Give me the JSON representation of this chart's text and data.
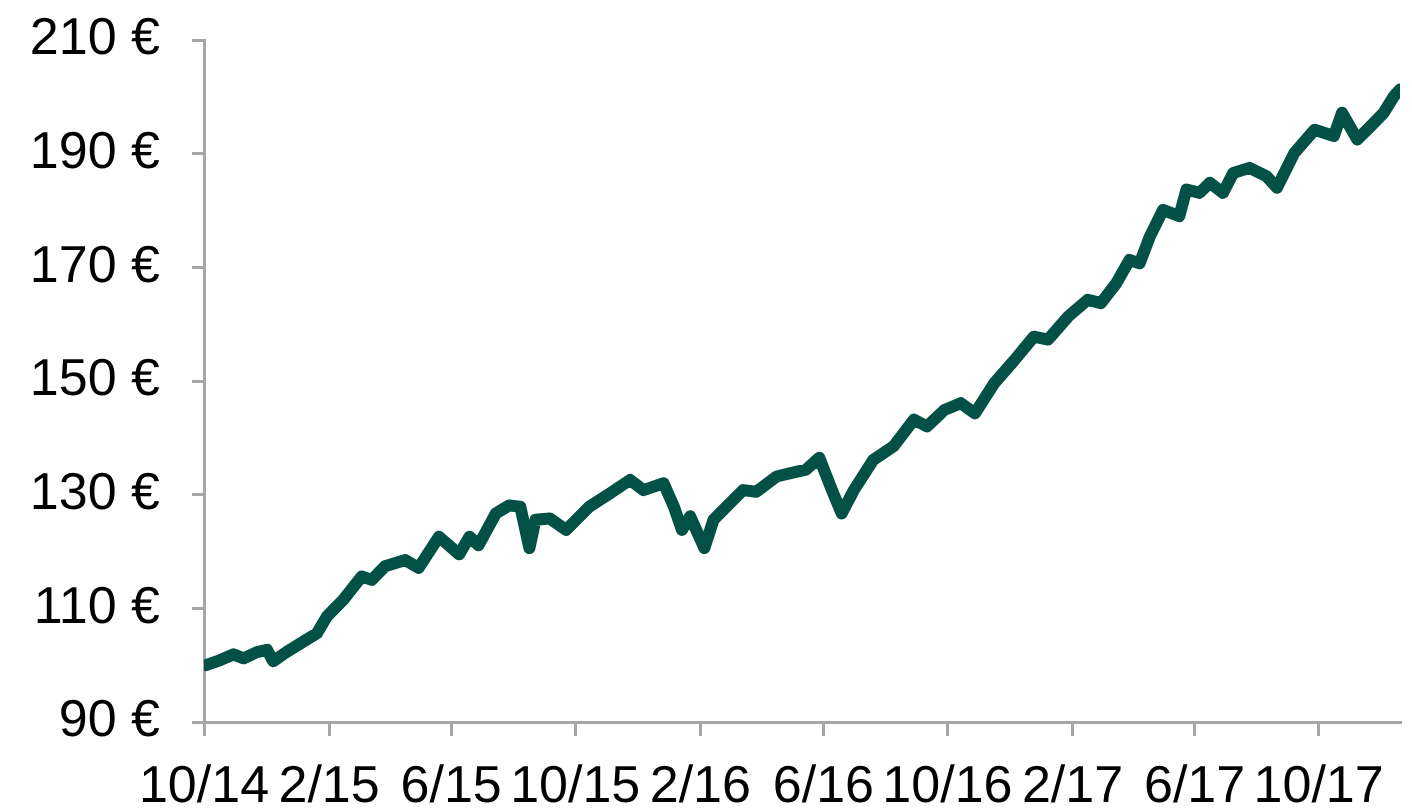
{
  "chart_data": {
    "type": "line",
    "marker": "none",
    "line_style": "solid",
    "x": [
      "2014-10-03",
      "2014-10-17",
      "2014-10-30",
      "2014-11-09",
      "2014-11-22",
      "2014-12-02",
      "2014-12-08",
      "2014-12-21",
      "2015-01-07",
      "2015-01-20",
      "2015-01-30",
      "2015-02-15",
      "2015-03-05",
      "2015-03-15",
      "2015-03-28",
      "2015-04-17",
      "2015-04-30",
      "2015-05-20",
      "2015-06-09",
      "2015-06-19",
      "2015-06-28",
      "2015-07-15",
      "2015-07-28",
      "2015-08-08",
      "2015-08-17",
      "2015-08-23",
      "2015-09-06",
      "2015-09-22",
      "2015-10-15",
      "2015-11-04",
      "2015-11-24",
      "2015-12-07",
      "2015-12-27",
      "2016-01-06",
      "2016-01-14",
      "2016-01-22",
      "2016-02-05",
      "2016-02-14",
      "2016-03-14",
      "2016-03-27",
      "2016-04-16",
      "2016-05-05",
      "2016-05-15",
      "2016-05-28",
      "2016-06-09",
      "2016-06-19",
      "2016-07-01",
      "2016-07-20",
      "2016-08-09",
      "2016-08-29",
      "2016-09-11",
      "2016-09-28",
      "2016-10-14",
      "2016-10-28",
      "2016-11-16",
      "2016-12-06",
      "2016-12-25",
      "2017-01-08",
      "2017-01-28",
      "2017-02-16",
      "2017-03-01",
      "2017-03-16",
      "2017-03-29",
      "2017-04-08",
      "2017-04-18",
      "2017-05-01",
      "2017-05-17",
      "2017-05-24",
      "2017-06-06",
      "2017-06-16",
      "2017-06-29",
      "2017-07-09",
      "2017-07-25",
      "2017-08-11",
      "2017-08-21",
      "2017-09-07",
      "2017-09-27",
      "2017-10-16",
      "2017-10-24",
      "2017-11-08",
      "2017-11-21",
      "2017-12-04",
      "2017-12-14",
      "2017-12-20"
    ],
    "series": [
      {
        "color": "#035046",
        "values": [
          100.0,
          100.9,
          101.9,
          101.2,
          102.3,
          102.7,
          100.7,
          102.3,
          104.2,
          105.6,
          108.6,
          111.5,
          115.6,
          115.0,
          117.4,
          118.5,
          117.1,
          122.6,
          119.5,
          122.6,
          121.1,
          126.7,
          128.1,
          127.9,
          120.6,
          125.6,
          125.8,
          123.8,
          127.9,
          130.2,
          132.6,
          130.8,
          132.0,
          127.9,
          123.8,
          126.2,
          120.6,
          125.6,
          130.8,
          130.5,
          133.2,
          134.0,
          134.4,
          136.5,
          131.0,
          126.7,
          130.8,
          136.1,
          138.5,
          143.2,
          142.0,
          144.9,
          146.1,
          144.3,
          149.6,
          153.7,
          157.8,
          157.3,
          161.4,
          164.3,
          163.7,
          167.2,
          171.3,
          170.7,
          175.4,
          180.1,
          179.0,
          183.7,
          183.1,
          184.9,
          183.1,
          186.6,
          187.5,
          186.0,
          184.0,
          190.1,
          194.2,
          193.1,
          197.2,
          192.5,
          194.8,
          197.2,
          200.1,
          201.3
        ]
      }
    ],
    "xlim": [
      "2014-10-01",
      "2017-12-20"
    ],
    "xticks": [
      {
        "value": "2014-10-01",
        "label": "10/14"
      },
      {
        "value": "2015-02-01",
        "label": "2/15"
      },
      {
        "value": "2015-06-01",
        "label": "6/15"
      },
      {
        "value": "2015-10-01",
        "label": "10/15"
      },
      {
        "value": "2016-02-01",
        "label": "2/16"
      },
      {
        "value": "2016-06-01",
        "label": "6/16"
      },
      {
        "value": "2016-10-01",
        "label": "10/16"
      },
      {
        "value": "2017-02-01",
        "label": "2/17"
      },
      {
        "value": "2017-06-01",
        "label": "6/17"
      },
      {
        "value": "2017-10-01",
        "label": "10/17"
      }
    ],
    "ylim": [
      90,
      210
    ],
    "yticks": [
      {
        "value": 90,
        "label": "90 €"
      },
      {
        "value": 110,
        "label": "110 €"
      },
      {
        "value": 130,
        "label": "130 €"
      },
      {
        "value": 150,
        "label": "150 €"
      },
      {
        "value": 170,
        "label": "170 €"
      },
      {
        "value": 190,
        "label": "190 €"
      },
      {
        "value": 210,
        "label": "210 €"
      }
    ]
  }
}
